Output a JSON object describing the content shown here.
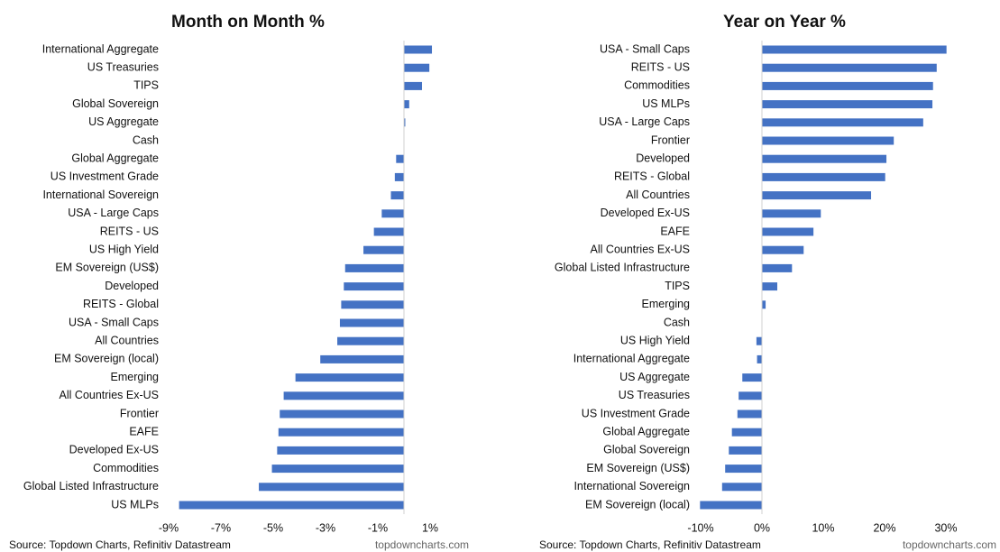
{
  "chart_data": [
    {
      "type": "bar",
      "orientation": "horizontal",
      "title": "Month on Month %",
      "color": "#4472c4",
      "categories": [
        "International Aggregate",
        "US Treasuries",
        "TIPS",
        "Global Sovereign",
        "US Aggregate",
        "Cash",
        "Global Aggregate",
        "US Investment Grade",
        "International Sovereign",
        "USA - Large Caps",
        "REITS - US",
        "US High Yield",
        "EM Sovereign (US$)",
        "Developed",
        "REITS - Global",
        "USA - Small Caps",
        "All Countries",
        "EM Sovereign (local)",
        "Emerging",
        "All Countries Ex-US",
        "Frontier",
        "EAFE",
        "Developed Ex-US",
        "Commodities",
        "Global Listed Infrastructure",
        "US MLPs"
      ],
      "values": [
        1.07,
        0.97,
        0.69,
        0.2,
        0.05,
        0,
        -0.3,
        -0.35,
        -0.5,
        -0.85,
        -1.15,
        -1.55,
        -2.25,
        -2.3,
        -2.4,
        -2.45,
        -2.55,
        -3.2,
        -4.15,
        -4.6,
        -4.75,
        -4.8,
        -4.85,
        -5.05,
        -5.55,
        -8.6
      ],
      "xlim": [
        -9,
        1.5
      ],
      "xticks": [
        {
          "value": -9,
          "label": "-9%"
        },
        {
          "value": -7,
          "label": "-7%"
        },
        {
          "value": -5,
          "label": "-5%"
        },
        {
          "value": -3,
          "label": "-3%"
        },
        {
          "value": -1,
          "label": "-1%"
        },
        {
          "value": 1,
          "label": "1%"
        }
      ],
      "source": "Source: Topdown Charts, Refinitiv Datastream",
      "credit": "topdowncharts.com"
    },
    {
      "type": "bar",
      "orientation": "horizontal",
      "title": "Year on Year %",
      "color": "#4472c4",
      "categories": [
        "USA - Small Caps",
        "REITS - US",
        "Commodities",
        "US MLPs",
        "USA - Large Caps",
        "Frontier",
        "Developed",
        "REITS - Global",
        "All Countries",
        "Developed Ex-US",
        "EAFE",
        "All Countries Ex-US",
        "Global Listed Infrastructure",
        "TIPS",
        "Emerging",
        "Cash",
        "US High Yield",
        "International Aggregate",
        "US Aggregate",
        "US Treasuries",
        "US Investment Grade",
        "Global Aggregate",
        "Global Sovereign",
        "EM Sovereign (US$)",
        "International Sovereign",
        "EM Sovereign (local)"
      ],
      "values": [
        30.1,
        28.5,
        27.9,
        27.8,
        26.3,
        21.5,
        20.3,
        20.1,
        17.8,
        9.6,
        8.4,
        6.8,
        4.9,
        2.5,
        0.6,
        0,
        -0.9,
        -0.8,
        -3.2,
        -3.8,
        -4.0,
        -4.9,
        -5.4,
        -6.0,
        -6.5,
        -10.1
      ],
      "xlim": [
        -10,
        32
      ],
      "xticks": [
        {
          "value": -10,
          "label": "-10%"
        },
        {
          "value": 0,
          "label": "0%"
        },
        {
          "value": 10,
          "label": "10%"
        },
        {
          "value": 20,
          "label": "20%"
        },
        {
          "value": 30,
          "label": "30%"
        }
      ],
      "source": "Source: Topdown Charts, Refinitiv Datastream",
      "credit": "topdowncharts.com"
    }
  ]
}
